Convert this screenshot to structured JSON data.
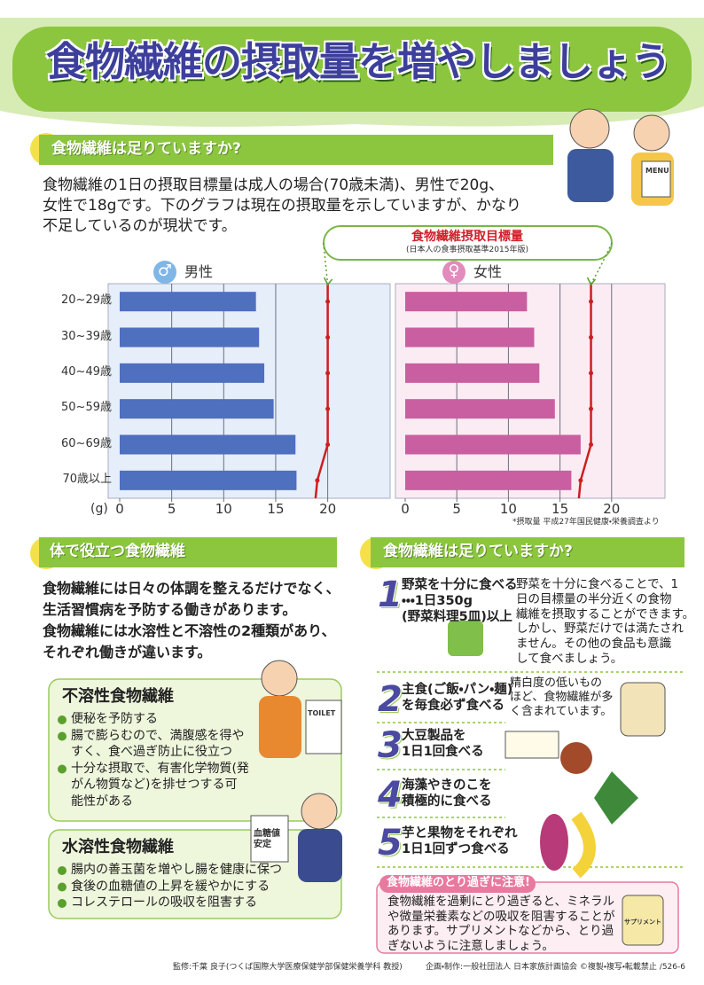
{
  "title": "食物繊維の摂取量を増やしましょう",
  "intro": {
    "heading": "食物繊維は足りていますか?",
    "lines": [
      "食物繊維の1日の摂取目標量は成人の場合(70歳未満)、男性で20g、",
      "女性で18gです。下のグラフは現在の摂取量を示していますが、かなり",
      "不足しているのが現状です。"
    ]
  },
  "target_box": {
    "title": "食物繊維摂取目標量",
    "note": "(日本人の食事摂取基準2015年版)"
  },
  "chart_data": [
    {
      "type": "bar",
      "orientation": "horizontal",
      "symbol": "♂",
      "title": "男性",
      "x_unit": "(g)",
      "categories": [
        "20~29歳",
        "30~39歳",
        "40~49歳",
        "50~59歳",
        "60~69歳",
        "70歳以上"
      ],
      "values": [
        13.1,
        13.4,
        13.9,
        14.8,
        16.9,
        17.0
      ],
      "target_values": [
        20,
        20,
        20,
        20,
        20,
        19
      ],
      "color": "#4f6fbf",
      "target_color": "#cc1f1f",
      "background": "#e6eef9",
      "symbol_color": "#7fb6e6",
      "xlim": [
        0,
        26
      ],
      "xticks": [
        0,
        5,
        10,
        15,
        20
      ],
      "grid": true
    },
    {
      "type": "bar",
      "orientation": "horizontal",
      "symbol": "♀",
      "title": "女性",
      "values": [
        11.8,
        12.5,
        13.0,
        14.5,
        17.0,
        16.1
      ],
      "target_values": [
        18,
        18,
        18,
        18,
        18,
        17
      ],
      "color": "#c95fa0",
      "target_color": "#cc1f1f",
      "background": "#fbecf3",
      "symbol_color": "#e28bbd",
      "xlim": [
        0,
        25
      ],
      "xticks": [
        0,
        5,
        10,
        15,
        20
      ],
      "grid": true
    }
  ],
  "chart_note": "*摂取量 平成27年国民健康・栄養調査より",
  "benefits": {
    "heading": "体で役立つ食物繊維",
    "lines": [
      "食物繊維には日々の体調を整えるだけでなく、",
      "生活習慣病を予防する働きがあります。",
      "食物繊維には水溶性と不溶性の2種類があり、",
      "それぞれ働きが違います。"
    ],
    "boxes": [
      {
        "title": "不溶性食物繊維",
        "items": [
          [
            "便秘を予防する"
          ],
          [
            "腸で膨らむので、満腹感を得や",
            "すく、食べ過ぎ防止に役立つ"
          ],
          [
            "十分な摂取で、有害化学物質(発",
            "がん物質など)を排せつする可",
            "能性がある"
          ]
        ]
      },
      {
        "title": "水溶性食物繊維",
        "items": [
          [
            "腸内の善玉菌を増やし腸を健康に保つ"
          ],
          [
            "食後の血糖値の上昇を緩やかにする"
          ],
          [
            "コレステロールの吸収を阻害する"
          ]
        ]
      }
    ]
  },
  "tips": {
    "heading": "食物繊維は足りていますか?",
    "items": [
      {
        "number": "1",
        "lines": [
          "野菜を十分に食べる",
          "・・・1日350g",
          "(野菜料理5皿)以上"
        ],
        "note": [
          "野菜を十分に食べることで、1",
          "日の目標量の半分近くの食物",
          "繊維を摂取することができます。",
          "しかし、野菜だけでは満たされ",
          "ません。その他の食品も意識",
          "して食べましょう。"
        ]
      },
      {
        "number": "2",
        "lines": [
          "主食(ご飯・パン・麺)",
          "を毎食必ず食べる"
        ],
        "note": [
          "精白度の低いもの",
          "ほど、食物繊維が多",
          "く含まれています。"
        ]
      },
      {
        "number": "3",
        "lines": [
          "大豆製品を",
          "1日1回食べる"
        ]
      },
      {
        "number": "4",
        "lines": [
          "海藻やきのこを",
          "積極的に食べる"
        ]
      },
      {
        "number": "5",
        "lines": [
          "芋と果物をそれぞれ",
          "1日1回ずつ食べる"
        ]
      }
    ]
  },
  "warning": {
    "title": "食物繊維のとり過ぎに注意!",
    "lines": [
      "食物繊維を過剰にとり過ぎると、ミネラル",
      "や微量栄養素などの吸収を阻害することが",
      "あります。サプリメントなどから、とり過",
      "ぎないように注意しましょう。"
    ]
  },
  "labels": {
    "menu": "MENU",
    "toilet": "TOILET",
    "sign": "血糖値安定",
    "supplement": "サプリメント"
  },
  "footer": [
    "監修:千葉 良子(つくば国際大学医療保健学部保健栄養学科 教授)",
    "企画・制作:一般社団法人 日本家族計画協会 ©複製・複写・転載禁止 /526-6"
  ]
}
